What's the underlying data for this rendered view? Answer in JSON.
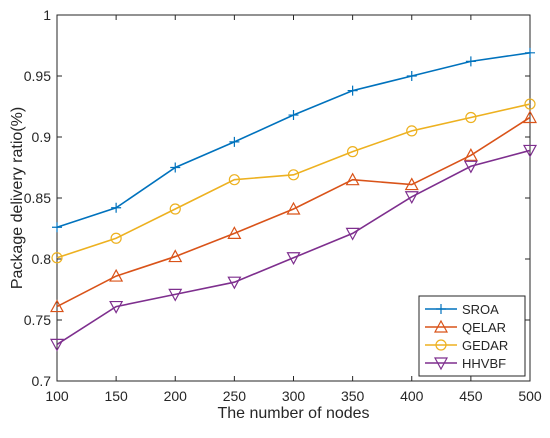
{
  "chart_data": {
    "type": "line",
    "title": "",
    "xlabel": "The number of nodes",
    "ylabel": "Package delivery ratio(%)",
    "x": [
      100,
      150,
      200,
      250,
      300,
      350,
      400,
      450,
      500
    ],
    "xlim": [
      100,
      500
    ],
    "ylim": [
      0.7,
      1.0
    ],
    "xticks": [
      100,
      150,
      200,
      250,
      300,
      350,
      400,
      450,
      500
    ],
    "yticks": [
      0.7,
      0.75,
      0.8,
      0.85,
      0.9,
      0.95,
      1.0
    ],
    "ytick_labels": [
      "0.7",
      "0.75",
      "0.8",
      "0.85",
      "0.9",
      "0.95",
      "1"
    ],
    "grid": false,
    "legend_position": "bottom-right",
    "series": [
      {
        "name": "SROA",
        "color": "#0072BD",
        "marker": "plus",
        "values": [
          0.826,
          0.842,
          0.875,
          0.896,
          0.918,
          0.938,
          0.95,
          0.962,
          0.969
        ]
      },
      {
        "name": "QELAR",
        "color": "#D95319",
        "marker": "triangle-up",
        "values": [
          0.761,
          0.786,
          0.802,
          0.821,
          0.841,
          0.865,
          0.861,
          0.885,
          0.916
        ]
      },
      {
        "name": "GEDAR",
        "color": "#EDB120",
        "marker": "circle",
        "values": [
          0.801,
          0.817,
          0.841,
          0.865,
          0.869,
          0.888,
          0.905,
          0.916,
          0.927
        ]
      },
      {
        "name": "HHVBF",
        "color": "#7E2F8E",
        "marker": "triangle-down",
        "values": [
          0.73,
          0.761,
          0.771,
          0.781,
          0.801,
          0.821,
          0.851,
          0.876,
          0.889
        ]
      }
    ]
  }
}
